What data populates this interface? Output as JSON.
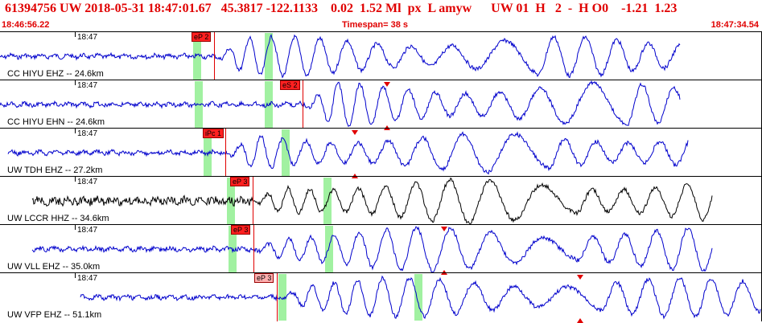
{
  "header": {
    "text": "61394756 UW 2018-05-31 18:47:01.67   45.3817 -122.1133    0.02  1.52 Ml  px  L amyw      UW 01  H   2  -  H O0    -1.21  1.23",
    "start_time": "18:46:56.22",
    "timespan": "Timespan=  38 s",
    "end_time": "18:47:34.54"
  },
  "colors": {
    "header": "#e00000",
    "trace_blue": "#0000cc",
    "trace_black": "#000000",
    "pick_red": "#ff2020",
    "pick_light": "#ffb0b0",
    "green_marker": "#90ee90"
  },
  "panels": [
    {
      "time": "18:47",
      "label": "CC HIYU EHZ -- 24.6km",
      "color": "#0000cc",
      "pick": "eP 2",
      "pick_light": false,
      "amp": 0.45,
      "onset": 0.28
    },
    {
      "time": "18:47",
      "label": "CC HIYU EHN -- 24.6km",
      "color": "#0000cc",
      "pick": "eS 2",
      "pick_light": false,
      "amp": 0.5,
      "onset": 0.28
    },
    {
      "time": "18:47",
      "label": "UW TDH EHZ -- 27.2km",
      "color": "#0000cc",
      "pick": "iPc 1",
      "pick_light": false,
      "amp": 0.45,
      "onset": 0.29
    },
    {
      "time": "18:47",
      "label": "UW LCCR HHZ -- 34.6km",
      "color": "#000000",
      "pick": "eP 3",
      "pick_light": false,
      "amp": 0.5,
      "onset": 0.0
    },
    {
      "time": "18:47",
      "label": "UW VLL EHZ -- 35.0km",
      "color": "#0000cc",
      "pick": "eP 3",
      "pick_light": false,
      "amp": 0.5,
      "onset": 0.33
    },
    {
      "time": "18:47",
      "label": "UW VFP EHZ -- 51.1km",
      "color": "#0000cc",
      "pick": "eP 3",
      "pick_light": true,
      "amp": 0.45,
      "onset": 0.37
    }
  ]
}
